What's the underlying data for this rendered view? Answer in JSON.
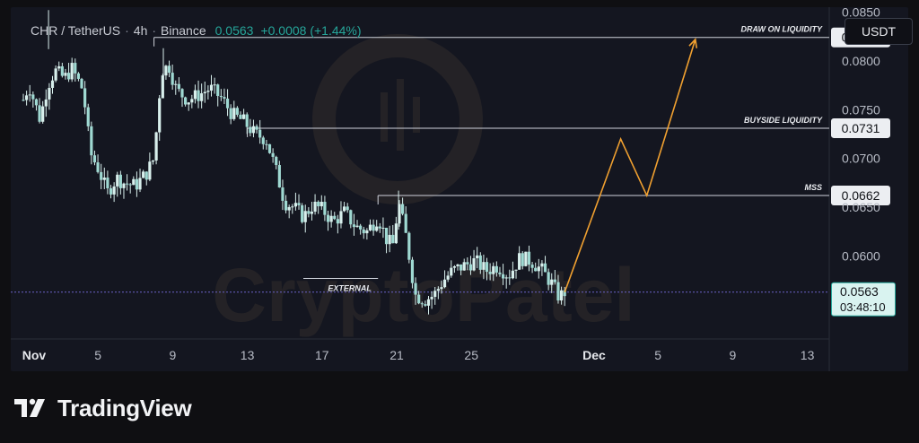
{
  "header": {
    "symbol": "CHR / TetherUS",
    "interval": "4h",
    "exchange": "Binance",
    "last_price": "0.0563",
    "change": "+0.0008 (+1.44%)",
    "separator": "·"
  },
  "currency_button": "USDT",
  "countdown": "03:48:10",
  "watermark": "CryptoPatel",
  "brand": "TradingView",
  "colors": {
    "up": "#26a69a",
    "down": "#ef5350",
    "candle": "#d8efec",
    "projection": "#f0a030",
    "level_line": "#cfd3dc",
    "current_price_line": "#6a62c8"
  },
  "chart_data": {
    "type": "candlestick",
    "x_axis": {
      "ticks": [
        "Nov",
        "5",
        "9",
        "13",
        "17",
        "21",
        "25",
        "Dec",
        "5",
        "9",
        "13"
      ]
    },
    "y_axis": {
      "range": [
        0.0515,
        0.0855
      ],
      "ticks": [
        "0.0850",
        "0.0800",
        "0.0750",
        "0.0700",
        "0.0650",
        "0.0600"
      ]
    },
    "levels": [
      {
        "label": "DRAW ON LIQUIDITY",
        "price": "0.0824",
        "value": 0.0824,
        "start_date": "Nov 8"
      },
      {
        "label": "BUYSIDE LIQUIDITY",
        "price": "0.0731",
        "value": 0.0731,
        "start_date": "Nov 13"
      },
      {
        "label": "MSS",
        "price": "0.0662",
        "value": 0.0662,
        "start_date": "Nov 20"
      },
      {
        "label": "EXTERNAL",
        "value": 0.0577,
        "start_date": "Nov 16",
        "end_date": "Nov 20"
      }
    ],
    "current_price": {
      "price": "0.0563",
      "value": 0.0563
    },
    "projection": [
      {
        "day": 29,
        "value": 0.0563
      },
      {
        "day": 32,
        "value": 0.072
      },
      {
        "day": 33.4,
        "value": 0.0662
      },
      {
        "day": 36,
        "value": 0.0822
      }
    ],
    "price_path": [
      {
        "day": 0.0,
        "value": 0.076
      },
      {
        "day": 0.3,
        "value": 0.0775
      },
      {
        "day": 0.9,
        "value": 0.074
      },
      {
        "day": 1.3,
        "value": 0.0775
      },
      {
        "day": 1.7,
        "value": 0.079
      },
      {
        "day": 2.2,
        "value": 0.0782
      },
      {
        "day": 2.6,
        "value": 0.0792
      },
      {
        "day": 3.2,
        "value": 0.077
      },
      {
        "day": 3.6,
        "value": 0.0705
      },
      {
        "day": 4.0,
        "value": 0.069
      },
      {
        "day": 4.5,
        "value": 0.0665
      },
      {
        "day": 5.0,
        "value": 0.068
      },
      {
        "day": 5.4,
        "value": 0.0675
      },
      {
        "day": 6.0,
        "value": 0.0672
      },
      {
        "day": 6.6,
        "value": 0.0685
      },
      {
        "day": 7.0,
        "value": 0.07
      },
      {
        "day": 7.4,
        "value": 0.079
      },
      {
        "day": 7.8,
        "value": 0.0795
      },
      {
        "day": 8.2,
        "value": 0.077
      },
      {
        "day": 8.8,
        "value": 0.076
      },
      {
        "day": 9.4,
        "value": 0.0765
      },
      {
        "day": 10.0,
        "value": 0.0772
      },
      {
        "day": 10.6,
        "value": 0.0762
      },
      {
        "day": 11.2,
        "value": 0.0745
      },
      {
        "day": 11.8,
        "value": 0.0738
      },
      {
        "day": 12.4,
        "value": 0.0725
      },
      {
        "day": 13.0,
        "value": 0.072
      },
      {
        "day": 13.5,
        "value": 0.069
      },
      {
        "day": 14.0,
        "value": 0.0655
      },
      {
        "day": 14.5,
        "value": 0.065
      },
      {
        "day": 15.0,
        "value": 0.064
      },
      {
        "day": 15.5,
        "value": 0.0652
      },
      {
        "day": 16.0,
        "value": 0.0648
      },
      {
        "day": 16.6,
        "value": 0.0635
      },
      {
        "day": 17.2,
        "value": 0.0645
      },
      {
        "day": 17.8,
        "value": 0.063
      },
      {
        "day": 18.4,
        "value": 0.0625
      },
      {
        "day": 19.0,
        "value": 0.064
      },
      {
        "day": 19.5,
        "value": 0.0615
      },
      {
        "day": 19.8,
        "value": 0.0612
      },
      {
        "day": 20.1,
        "value": 0.0655
      },
      {
        "day": 20.5,
        "value": 0.062
      },
      {
        "day": 21.0,
        "value": 0.056
      },
      {
        "day": 21.5,
        "value": 0.0555
      },
      {
        "day": 22.0,
        "value": 0.056
      },
      {
        "day": 22.5,
        "value": 0.0575
      },
      {
        "day": 23.0,
        "value": 0.0585
      },
      {
        "day": 23.6,
        "value": 0.059
      },
      {
        "day": 24.2,
        "value": 0.0595
      },
      {
        "day": 24.8,
        "value": 0.0585
      },
      {
        "day": 25.4,
        "value": 0.059
      },
      {
        "day": 26.0,
        "value": 0.058
      },
      {
        "day": 26.6,
        "value": 0.0598
      },
      {
        "day": 27.2,
        "value": 0.0595
      },
      {
        "day": 27.8,
        "value": 0.0585
      },
      {
        "day": 28.3,
        "value": 0.0572
      },
      {
        "day": 28.7,
        "value": 0.0558
      },
      {
        "day": 29.0,
        "value": 0.0563
      }
    ]
  }
}
